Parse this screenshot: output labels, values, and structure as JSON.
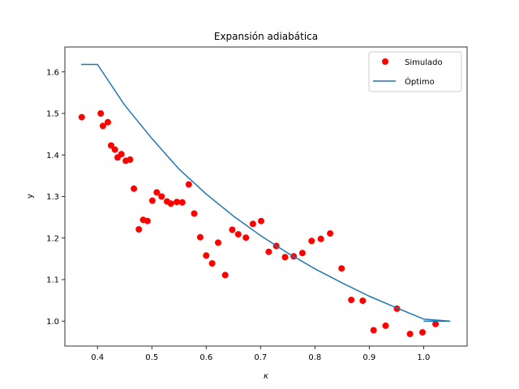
{
  "chart_data": {
    "type": "scatter",
    "title": "Expansión adiabática",
    "xlabel": "κ",
    "ylabel": "y",
    "xlim": [
      0.34,
      1.08
    ],
    "ylim": [
      0.94,
      1.66
    ],
    "xticks": [
      0.4,
      0.5,
      0.6,
      0.7,
      0.8,
      0.9,
      1.0
    ],
    "xtick_labels": [
      "0.4",
      "0.5",
      "0.6",
      "0.7",
      "0.8",
      "0.9",
      "1.0"
    ],
    "yticks": [
      1.0,
      1.1,
      1.2,
      1.3,
      1.4,
      1.5,
      1.6
    ],
    "ytick_labels": [
      "1.0",
      "1.1",
      "1.2",
      "1.3",
      "1.4",
      "1.5",
      "1.6"
    ],
    "grid": false,
    "legend_position": "top-right",
    "series": [
      {
        "name": "Simulado",
        "kind": "scatter",
        "color": "#ff0000",
        "points": [
          [
            0.371,
            1.491
          ],
          [
            0.406,
            1.5
          ],
          [
            0.41,
            1.47
          ],
          [
            0.419,
            1.479
          ],
          [
            0.425,
            1.423
          ],
          [
            0.432,
            1.413
          ],
          [
            0.437,
            1.394
          ],
          [
            0.444,
            1.402
          ],
          [
            0.452,
            1.386
          ],
          [
            0.46,
            1.389
          ],
          [
            0.467,
            1.319
          ],
          [
            0.476,
            1.221
          ],
          [
            0.484,
            1.244
          ],
          [
            0.492,
            1.241
          ],
          [
            0.501,
            1.29
          ],
          [
            0.509,
            1.31
          ],
          [
            0.518,
            1.3
          ],
          [
            0.528,
            1.288
          ],
          [
            0.535,
            1.283
          ],
          [
            0.546,
            1.287
          ],
          [
            0.556,
            1.286
          ],
          [
            0.568,
            1.329
          ],
          [
            0.578,
            1.259
          ],
          [
            0.589,
            1.202
          ],
          [
            0.6,
            1.158
          ],
          [
            0.611,
            1.139
          ],
          [
            0.622,
            1.189
          ],
          [
            0.635,
            1.111
          ],
          [
            0.648,
            1.22
          ],
          [
            0.659,
            1.209
          ],
          [
            0.673,
            1.201
          ],
          [
            0.686,
            1.234
          ],
          [
            0.701,
            1.241
          ],
          [
            0.715,
            1.167
          ],
          [
            0.729,
            1.181
          ],
          [
            0.745,
            1.154
          ],
          [
            0.761,
            1.156
          ],
          [
            0.777,
            1.164
          ],
          [
            0.794,
            1.193
          ],
          [
            0.811,
            1.198
          ],
          [
            0.828,
            1.211
          ],
          [
            0.849,
            1.127
          ],
          [
            0.867,
            1.051
          ],
          [
            0.888,
            1.049
          ],
          [
            0.908,
            0.978
          ],
          [
            0.93,
            0.989
          ],
          [
            0.951,
            1.03
          ],
          [
            0.975,
            0.969
          ],
          [
            0.998,
            0.973
          ],
          [
            1.022,
            0.993
          ]
        ]
      },
      {
        "name": "Óptimo",
        "kind": "line",
        "color": "#1f77b4",
        "points": [
          [
            0.37,
            1.618
          ],
          [
            0.4,
            1.618
          ],
          [
            0.45,
            1.52
          ],
          [
            0.5,
            1.44
          ],
          [
            0.55,
            1.366
          ],
          [
            0.6,
            1.306
          ],
          [
            0.65,
            1.253
          ],
          [
            0.7,
            1.206
          ],
          [
            0.75,
            1.164
          ],
          [
            0.8,
            1.126
          ],
          [
            0.85,
            1.092
          ],
          [
            0.9,
            1.06
          ],
          [
            0.95,
            1.032
          ],
          [
            1.0,
            1.005
          ],
          [
            1.048,
            1.0
          ],
          [
            1.0,
            1.0
          ]
        ]
      }
    ]
  }
}
